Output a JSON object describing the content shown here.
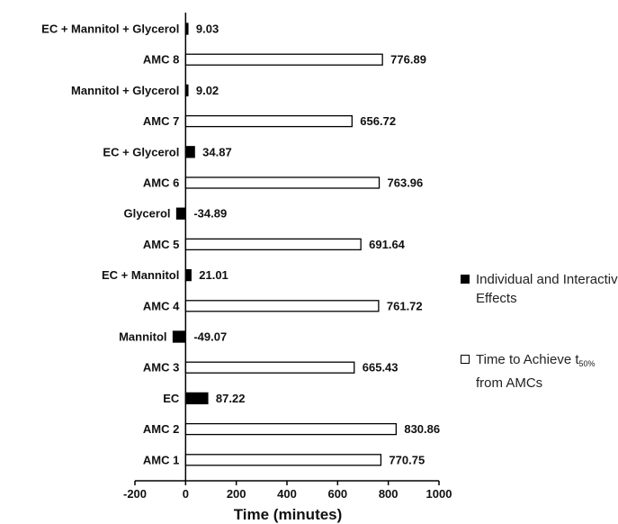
{
  "chart_data": {
    "type": "bar",
    "orientation": "horizontal",
    "xlabel": "Time (minutes)",
    "xlim": [
      -200,
      1000
    ],
    "xticks": [
      -200,
      0,
      200,
      400,
      600,
      800,
      1000
    ],
    "categories": [
      "EC + Mannitol + Glycerol",
      "AMC 8",
      "Mannitol + Glycerol",
      "AMC 7",
      "EC + Glycerol",
      "AMC 6",
      "Glycerol",
      "AMC 5",
      "EC + Mannitol",
      "AMC 4",
      "Mannitol",
      "AMC 3",
      "EC",
      "AMC 2",
      "AMC 1"
    ],
    "values": [
      9.03,
      776.89,
      9.02,
      656.72,
      34.87,
      763.96,
      -34.89,
      691.64,
      21.01,
      761.72,
      -49.07,
      665.43,
      87.22,
      830.86,
      770.75
    ],
    "value_labels": [
      "9.03",
      "776.89",
      "9.02",
      "656.72",
      "34.87",
      "763.96",
      "-34.89",
      "691.64",
      "21.01",
      "761.72",
      "-49.07",
      "665.43",
      "87.22",
      "830.86",
      "770.75"
    ],
    "series_of_bar": [
      "effect",
      "amc",
      "effect",
      "amc",
      "effect",
      "amc",
      "effect",
      "amc",
      "effect",
      "amc",
      "effect",
      "amc",
      "effect",
      "amc",
      "amc"
    ],
    "series": [
      {
        "key": "effect",
        "name": "Individual and Interactive Effects",
        "fill": "#000000"
      },
      {
        "key": "amc",
        "name_prefix": "Time to Achieve t",
        "name_sub": "50%",
        "name_suffix": "from AMCs",
        "fill": "#ffffff"
      }
    ],
    "legend_position": "right"
  }
}
